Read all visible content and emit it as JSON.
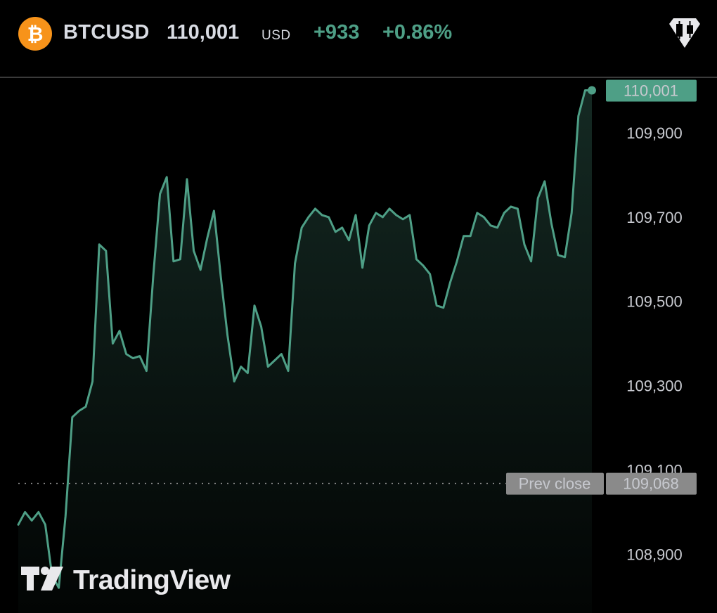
{
  "header": {
    "symbol": "BTCUSD",
    "price": "110,001",
    "currency": "USD",
    "change": "+933",
    "change_pct": "+0.86%",
    "coin_icon": "bitcoin-icon",
    "badge_icon": "candlestick-diamond-icon"
  },
  "colors": {
    "accent": "#4e9f86",
    "background": "#000000",
    "coin": "#f7931a",
    "label_grey": "#8a8a8a"
  },
  "chart_data": {
    "type": "area",
    "ylim": [
      108830,
      110030
    ],
    "y_ticks": [
      "109,900",
      "109,700",
      "109,500",
      "109,300",
      "109,100",
      "108,900"
    ],
    "y_tick_values": [
      109900,
      109700,
      109500,
      109300,
      109100,
      108900
    ],
    "values": [
      108970,
      109000,
      108980,
      109000,
      108970,
      108850,
      108820,
      108990,
      109225,
      109240,
      109250,
      109310,
      109635,
      109620,
      109400,
      109430,
      109375,
      109365,
      109370,
      109335,
      109560,
      109755,
      109795,
      109595,
      109600,
      109790,
      109620,
      109575,
      109650,
      109715,
      109560,
      109420,
      109310,
      109345,
      109330,
      109490,
      109440,
      109345,
      109360,
      109375,
      109335,
      109590,
      109675,
      109700,
      109720,
      109705,
      109700,
      109665,
      109675,
      109645,
      109705,
      109580,
      109680,
      109710,
      109700,
      109720,
      109705,
      109695,
      109705,
      109600,
      109585,
      109565,
      109490,
      109485,
      109545,
      109595,
      109655,
      109655,
      109710,
      109700,
      109680,
      109675,
      109710,
      109725,
      109720,
      109635,
      109595,
      109745,
      109785,
      109685,
      109610,
      109605,
      109710,
      109940,
      110001,
      110001
    ],
    "last_price": {
      "label": "110,001",
      "value": 110001
    },
    "prev_close": {
      "label": "Prev close",
      "value_label": "109,068",
      "value": 109068
    }
  },
  "watermark": {
    "text": "TradingView",
    "icon": "tradingview-logo-icon"
  }
}
